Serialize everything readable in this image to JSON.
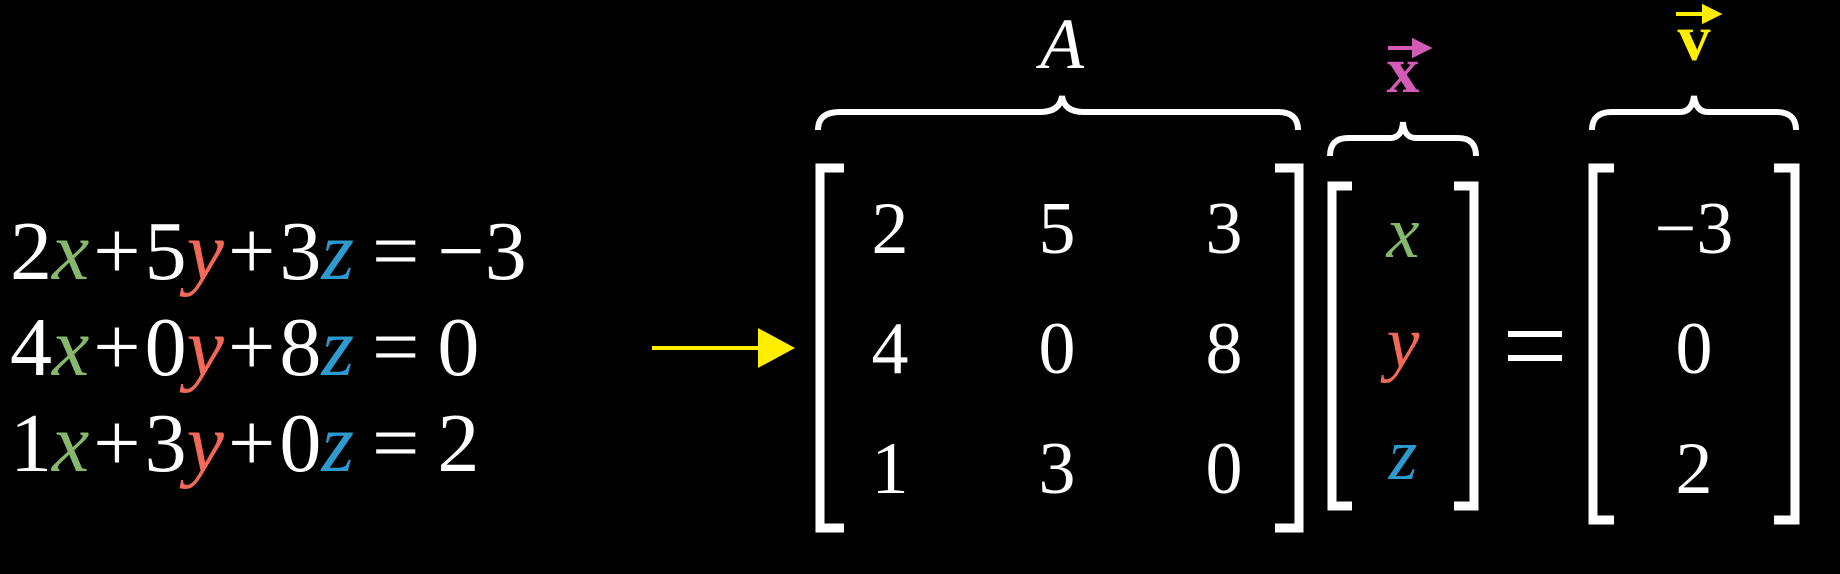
{
  "colors": {
    "background": "#000000",
    "text": "#ffffff",
    "x_color": "#86b86b",
    "y_color": "#f26a57",
    "z_color": "#2e9ad0",
    "arrow": "#ffee00",
    "x_vec": "#d45bb5",
    "v_vec": "#ffee00"
  },
  "equations": [
    {
      "a": "2",
      "b": "5",
      "c": "3",
      "rhs": "−3"
    },
    {
      "a": "4",
      "b": "0",
      "c": "8",
      "rhs": "0"
    },
    {
      "a": "1",
      "b": "3",
      "c": "0",
      "rhs": "2"
    }
  ],
  "symbols": {
    "x": "x",
    "y": "y",
    "z": "z",
    "plus": "+",
    "equals": "="
  },
  "labels": {
    "A": "A",
    "x_vec": "x",
    "v_vec": "v"
  },
  "matrix_A": [
    [
      "2",
      "5",
      "3"
    ],
    [
      "4",
      "0",
      "8"
    ],
    [
      "1",
      "3",
      "0"
    ]
  ],
  "vector_x": [
    "x",
    "y",
    "z"
  ],
  "vector_v": [
    "−3",
    "0",
    "2"
  ],
  "equals_sign": "="
}
